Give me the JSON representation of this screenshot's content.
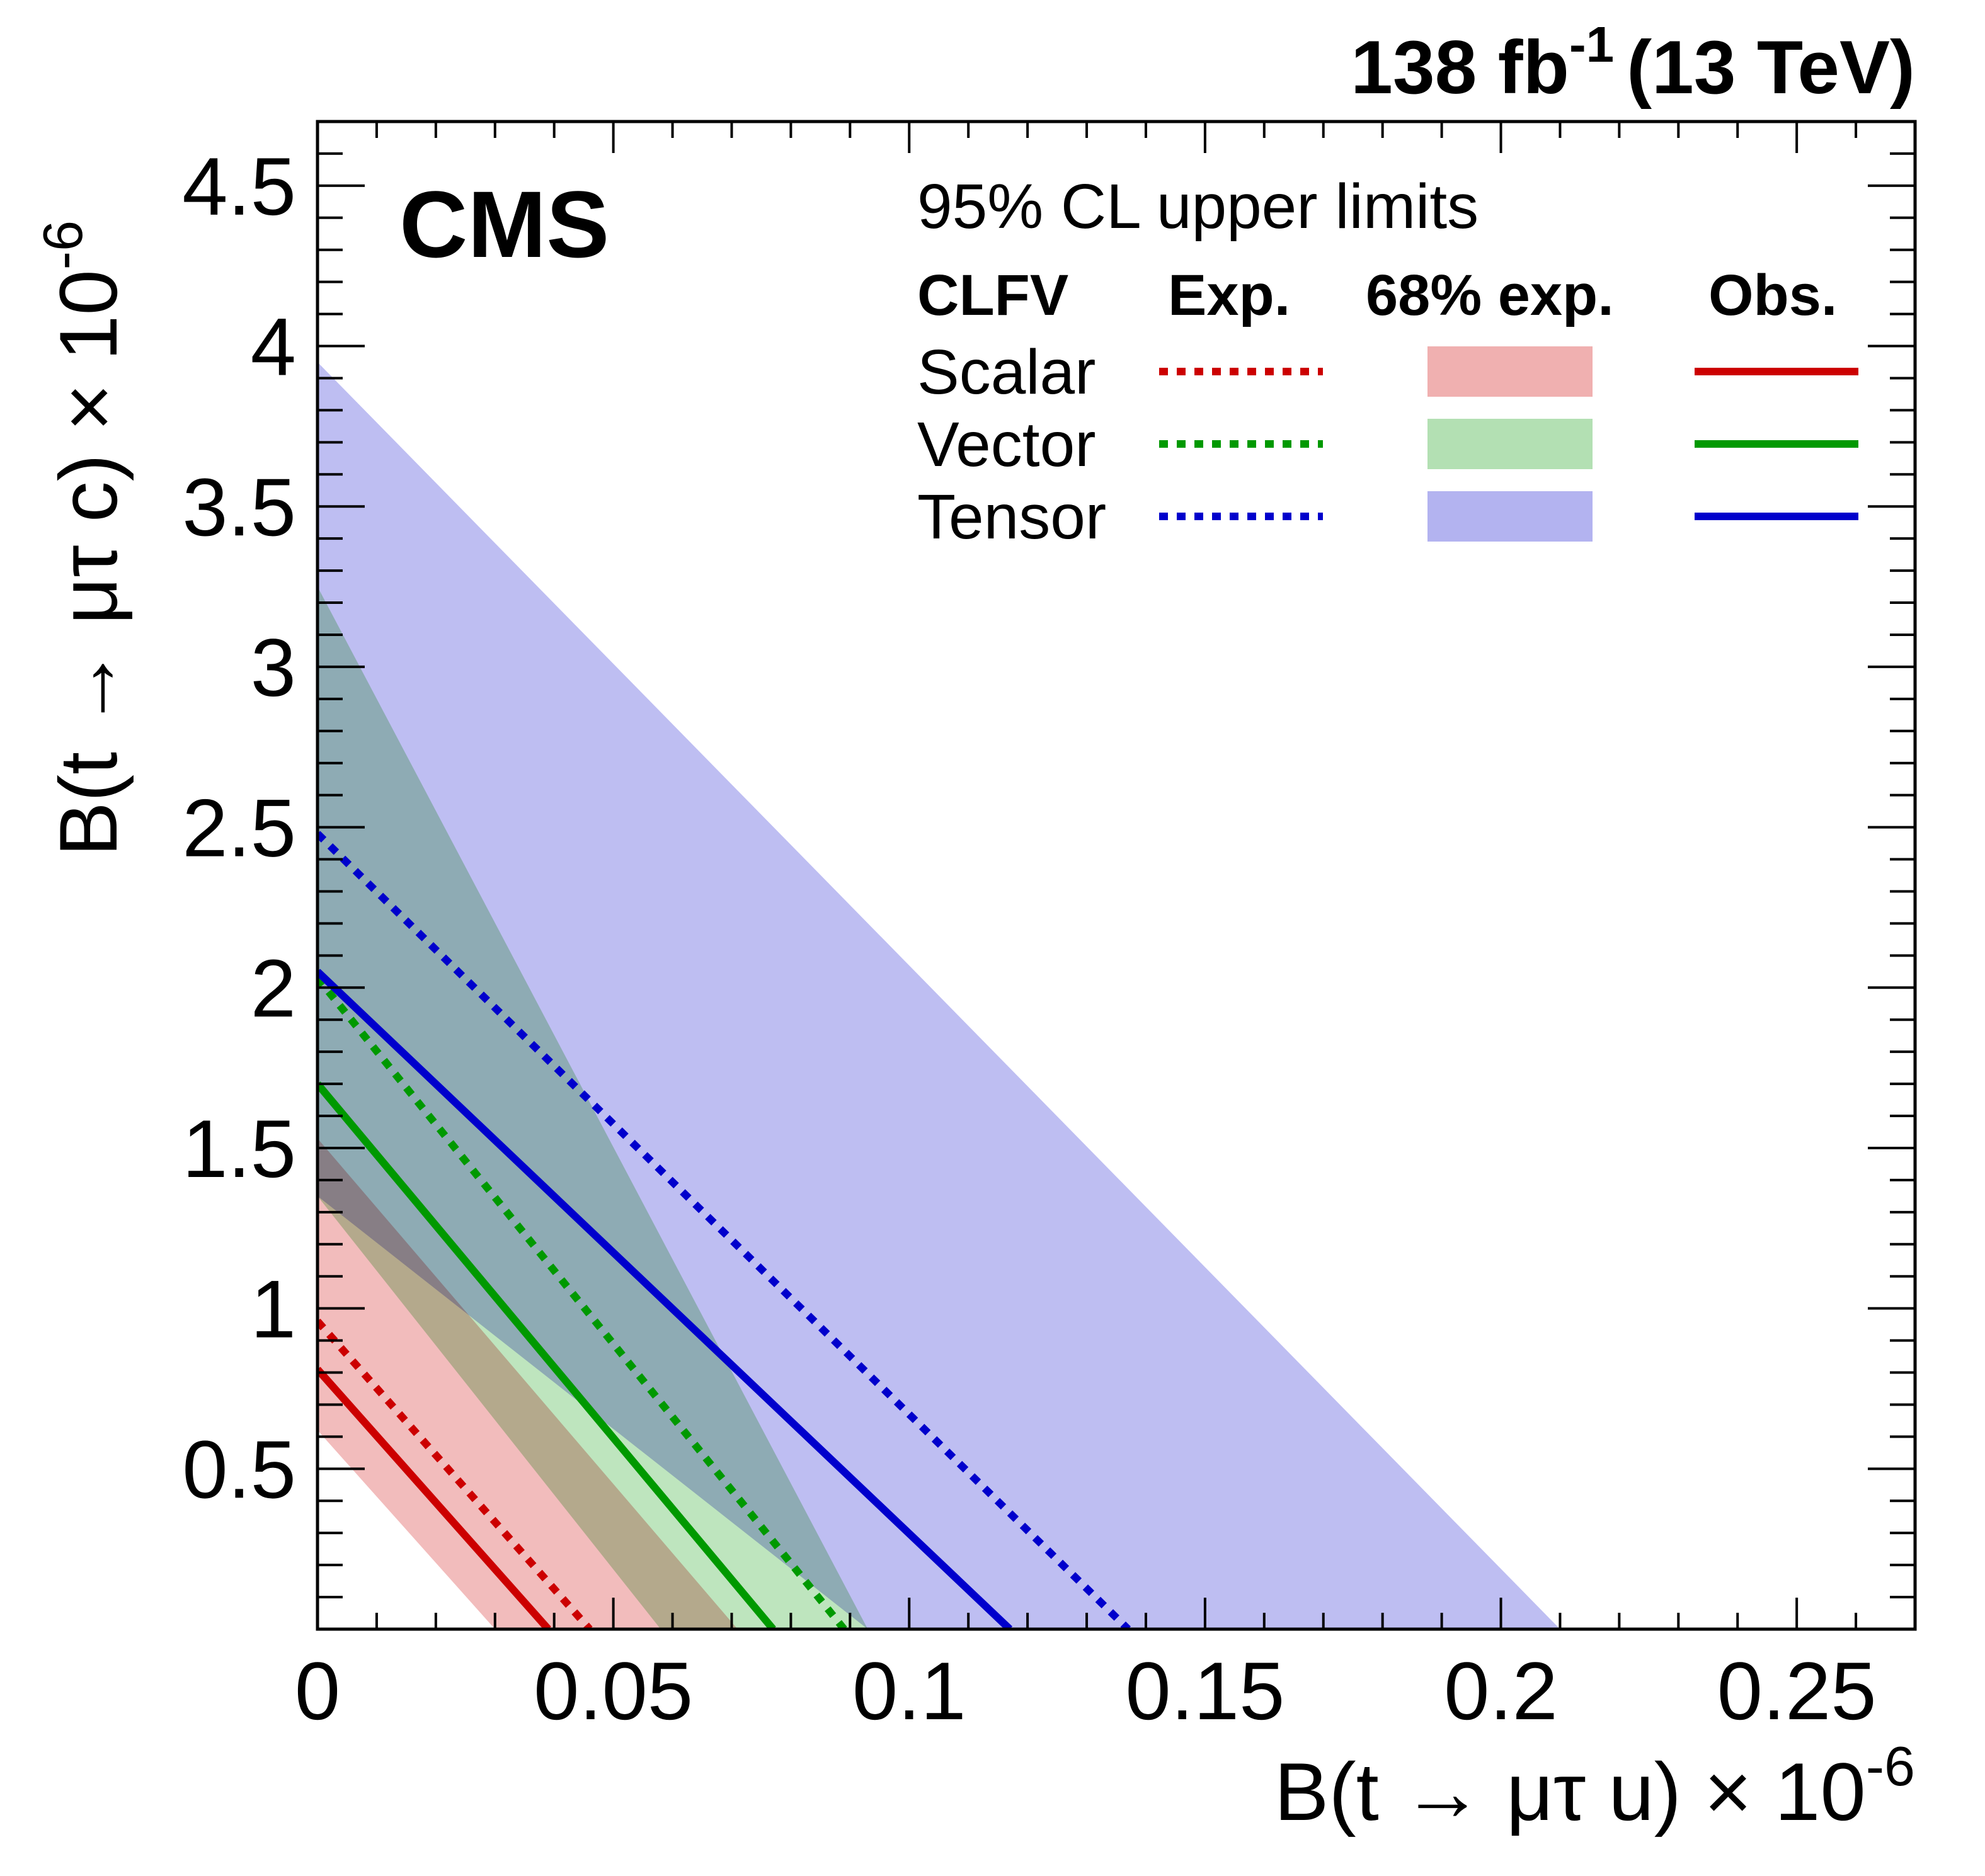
{
  "chart_data": {
    "type": "area",
    "header": {
      "cms_label": "CMS",
      "lumi_label": "138 fb",
      "lumi_sup": "-1",
      "energy_label": "(13 TeV)"
    },
    "xlabel": "B(t → μτ u) × 10",
    "xlabel_sup": "-6",
    "ylabel": "B(t → μτ c) × 10",
    "ylabel_sup": "-6",
    "xlim": [
      0,
      0.27
    ],
    "ylim": [
      0,
      4.7
    ],
    "x_ticks": [
      "0",
      "0.05",
      "0.1",
      "0.15",
      "0.2",
      "0.25"
    ],
    "y_ticks": [
      "0.5",
      "1",
      "1.5",
      "2",
      "2.5",
      "3",
      "3.5",
      "4",
      "4.5"
    ],
    "grid": false,
    "legend": {
      "title": "95% CL upper limits",
      "headers": [
        "CLFV",
        "Exp.",
        "68% exp.",
        "Obs."
      ],
      "placement": "top-right"
    },
    "series": [
      {
        "name": "Scalar",
        "color": "#cc0000",
        "band_color": "#f0b0b0",
        "expected": {
          "x_intercept": 0.046,
          "y_intercept": 0.96
        },
        "band": {
          "low": {
            "x_intercept": 0.03,
            "y_intercept": 0.62
          },
          "high": {
            "x_intercept": 0.071,
            "y_intercept": 1.53
          }
        },
        "observed": {
          "x_intercept": 0.039,
          "y_intercept": 0.81
        }
      },
      {
        "name": "Vector",
        "color": "#009900",
        "band_color": "#b3e0b3",
        "expected": {
          "x_intercept": 0.089,
          "y_intercept": 2.03
        },
        "band": {
          "low": {
            "x_intercept": 0.058,
            "y_intercept": 1.35
          },
          "high": {
            "x_intercept": 0.093,
            "y_intercept": 3.25
          }
        },
        "observed": {
          "x_intercept": 0.077,
          "y_intercept": 1.7
        }
      },
      {
        "name": "Tensor",
        "color": "#0000cc",
        "band_color": "#b3b3f0",
        "expected": {
          "x_intercept": 0.137,
          "y_intercept": 2.48
        },
        "band": {
          "low": {
            "x_intercept": 0.093,
            "y_intercept": 1.35
          },
          "high": {
            "x_intercept": 0.21,
            "y_intercept": 3.95
          }
        },
        "observed": {
          "x_intercept": 0.117,
          "y_intercept": 2.05
        }
      }
    ]
  }
}
